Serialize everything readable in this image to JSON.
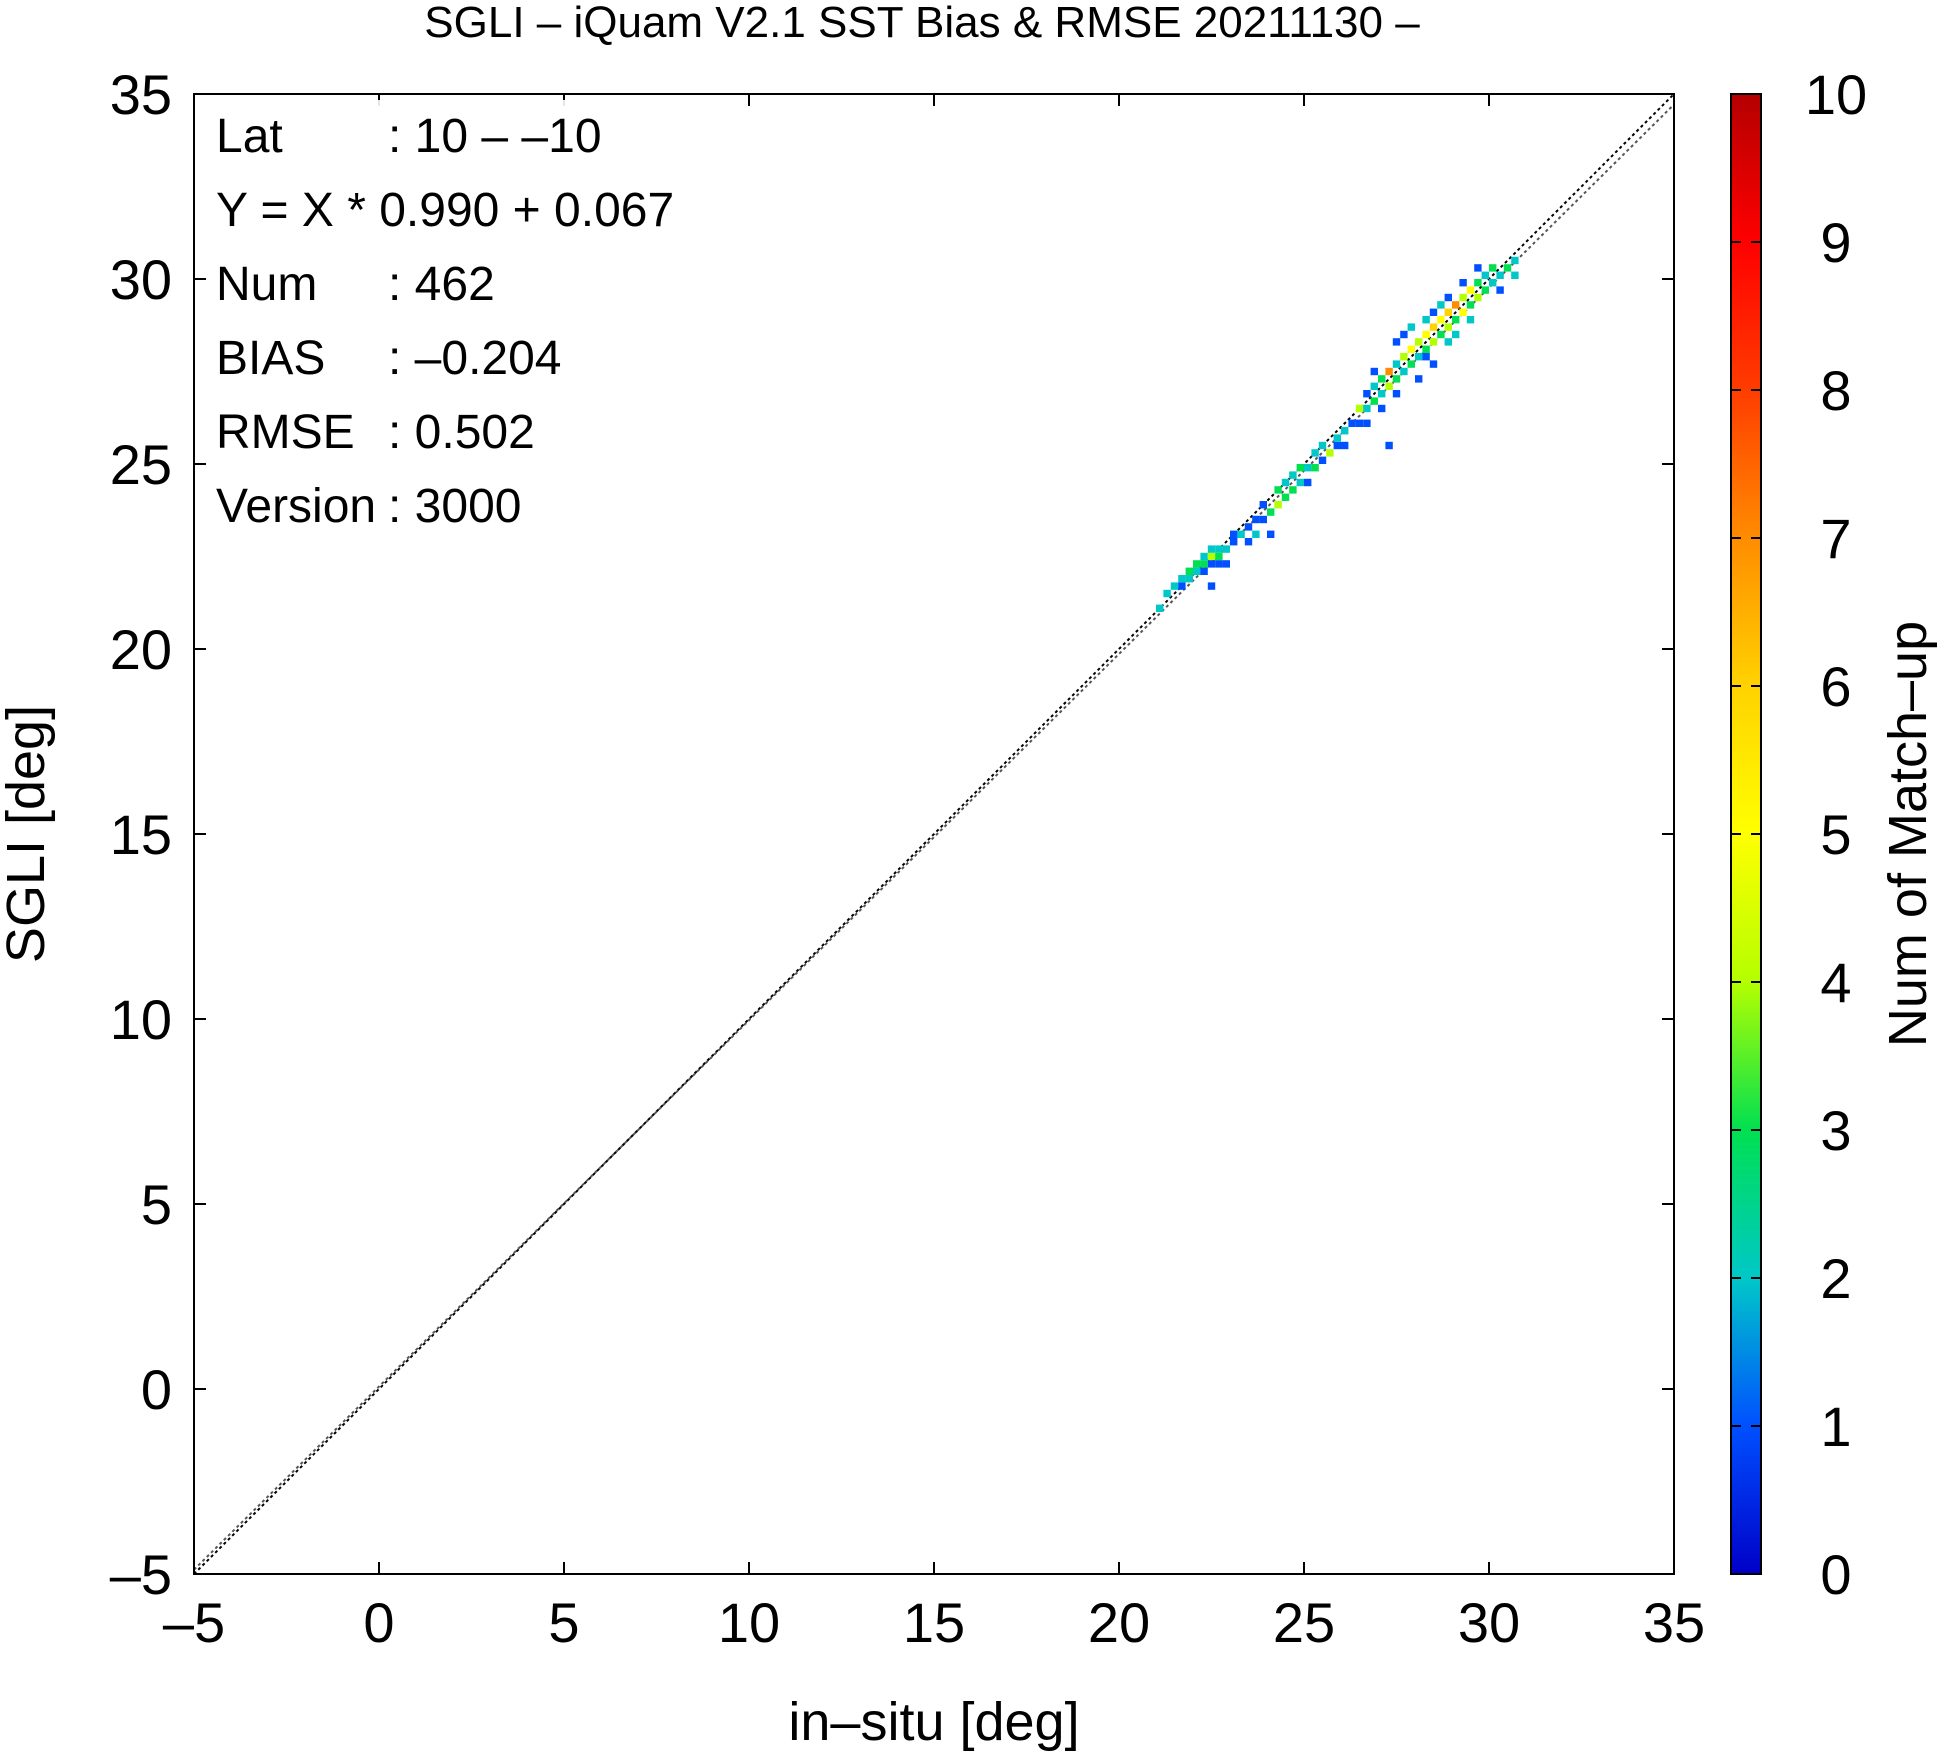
{
  "chart_data": {
    "type": "heatmap",
    "title": "SGLI – iQuam V2.1 SST Bias & RMSE 20211130 –",
    "xlabel": "in–situ [deg]",
    "ylabel": "SGLI [deg]",
    "xlim": [
      -5,
      35
    ],
    "ylim": [
      -5,
      35
    ],
    "x_ticks": [
      "–5",
      "0",
      "5",
      "10",
      "15",
      "20",
      "25",
      "30",
      "35"
    ],
    "y_ticks": [
      "–5",
      "0",
      "5",
      "10",
      "15",
      "20",
      "25",
      "30",
      "35"
    ],
    "colorbar": {
      "label": "Num of Match–up",
      "range": [
        0,
        10
      ],
      "ticks": [
        "0",
        "1",
        "2",
        "3",
        "4",
        "5",
        "6",
        "7",
        "8",
        "9",
        "10"
      ],
      "colors": [
        "#0000c8",
        "#0050ff",
        "#00c8c8",
        "#00e050",
        "#b4ff00",
        "#ffff00",
        "#ffd200",
        "#ff8c00",
        "#ff3c00",
        "#ff0000",
        "#b40000"
      ]
    },
    "reference_lines": [
      {
        "kind": "one_to_one",
        "slope": 1.0,
        "intercept": 0.0,
        "style": "dotted"
      },
      {
        "kind": "regression",
        "slope": 0.99,
        "intercept": 0.067,
        "style": "dotted"
      }
    ],
    "stats": [
      {
        "label": "Lat",
        "value": ": 10 – –10"
      },
      {
        "label": "Y = X * 0.990 + 0.067",
        "value": ""
      },
      {
        "label": "Num",
        "value": ": 462"
      },
      {
        "label": "BIAS",
        "value": ": –0.204"
      },
      {
        "label": "RMSE",
        "value": ": 0.502"
      },
      {
        "label": "Version",
        "value": ": 3000"
      }
    ],
    "bin_size": 0.2,
    "cells": [
      [
        21.0,
        21.0,
        2
      ],
      [
        21.2,
        21.4,
        2
      ],
      [
        21.4,
        21.6,
        2
      ],
      [
        21.6,
        21.6,
        1
      ],
      [
        21.6,
        21.8,
        2
      ],
      [
        21.8,
        21.8,
        2
      ],
      [
        21.8,
        22.0,
        3
      ],
      [
        22.0,
        22.0,
        2
      ],
      [
        22.0,
        22.2,
        3
      ],
      [
        22.2,
        22.0,
        1
      ],
      [
        22.2,
        22.2,
        3
      ],
      [
        22.2,
        22.4,
        2
      ],
      [
        22.4,
        21.6,
        1
      ],
      [
        22.4,
        22.4,
        4
      ],
      [
        22.4,
        22.6,
        2
      ],
      [
        22.4,
        22.2,
        1
      ],
      [
        22.6,
        22.4,
        3
      ],
      [
        22.6,
        22.6,
        2
      ],
      [
        22.6,
        22.2,
        1
      ],
      [
        22.8,
        22.6,
        2
      ],
      [
        22.8,
        22.2,
        1
      ],
      [
        23.0,
        22.8,
        1
      ],
      [
        23.0,
        23.0,
        1
      ],
      [
        23.2,
        23.0,
        2
      ],
      [
        23.4,
        23.2,
        1
      ],
      [
        23.4,
        22.8,
        1
      ],
      [
        23.6,
        23.4,
        1
      ],
      [
        23.6,
        23.0,
        2
      ],
      [
        23.8,
        23.4,
        1
      ],
      [
        23.8,
        23.8,
        1
      ],
      [
        24.0,
        23.6,
        3
      ],
      [
        24.0,
        23.0,
        1
      ],
      [
        24.2,
        23.8,
        4
      ],
      [
        24.2,
        24.2,
        3
      ],
      [
        24.4,
        24.0,
        3
      ],
      [
        24.4,
        24.4,
        2
      ],
      [
        24.6,
        24.2,
        3
      ],
      [
        24.6,
        24.6,
        2
      ],
      [
        24.8,
        24.4,
        2
      ],
      [
        24.8,
        24.8,
        3
      ],
      [
        25.0,
        24.8,
        2
      ],
      [
        25.0,
        24.4,
        1
      ],
      [
        25.2,
        24.8,
        3
      ],
      [
        25.2,
        25.2,
        2
      ],
      [
        25.4,
        25.0,
        1
      ],
      [
        25.4,
        25.4,
        2
      ],
      [
        25.6,
        25.2,
        4
      ],
      [
        25.8,
        25.4,
        1
      ],
      [
        25.8,
        25.6,
        2
      ],
      [
        26.0,
        25.8,
        2
      ],
      [
        26.0,
        25.4,
        1
      ],
      [
        26.2,
        26.0,
        1
      ],
      [
        26.4,
        26.0,
        1
      ],
      [
        26.4,
        26.4,
        4
      ],
      [
        26.6,
        26.4,
        2
      ],
      [
        26.6,
        26.8,
        1
      ],
      [
        26.6,
        26.0,
        1
      ],
      [
        26.8,
        26.6,
        3
      ],
      [
        26.8,
        27.0,
        2
      ],
      [
        26.8,
        27.4,
        1
      ],
      [
        27.0,
        26.8,
        2
      ],
      [
        27.0,
        27.2,
        3
      ],
      [
        27.0,
        26.4,
        1
      ],
      [
        27.2,
        27.0,
        4
      ],
      [
        27.2,
        27.4,
        7
      ],
      [
        27.2,
        25.4,
        1
      ],
      [
        27.4,
        27.2,
        3
      ],
      [
        27.4,
        27.6,
        2
      ],
      [
        27.4,
        26.8,
        1
      ],
      [
        27.4,
        28.2,
        1
      ],
      [
        27.6,
        27.4,
        2
      ],
      [
        27.6,
        27.8,
        4
      ],
      [
        27.6,
        28.4,
        1
      ],
      [
        27.8,
        27.6,
        3
      ],
      [
        27.8,
        28.0,
        5
      ],
      [
        27.8,
        28.6,
        2
      ],
      [
        28.0,
        27.8,
        2
      ],
      [
        28.0,
        28.2,
        4
      ],
      [
        28.0,
        27.2,
        1
      ],
      [
        28.2,
        28.0,
        3
      ],
      [
        28.2,
        28.4,
        5
      ],
      [
        28.2,
        28.8,
        2
      ],
      [
        28.2,
        27.8,
        1
      ],
      [
        28.4,
        28.2,
        4
      ],
      [
        28.4,
        28.6,
        6
      ],
      [
        28.4,
        29.0,
        1
      ],
      [
        28.4,
        27.6,
        1
      ],
      [
        28.6,
        28.4,
        3
      ],
      [
        28.6,
        28.8,
        5
      ],
      [
        28.6,
        29.2,
        2
      ],
      [
        28.8,
        28.6,
        4
      ],
      [
        28.8,
        29.0,
        6
      ],
      [
        28.8,
        29.4,
        1
      ],
      [
        28.8,
        28.2,
        2
      ],
      [
        29.0,
        28.8,
        3
      ],
      [
        29.0,
        29.2,
        7
      ],
      [
        29.0,
        28.4,
        2
      ],
      [
        29.2,
        29.0,
        5
      ],
      [
        29.2,
        29.4,
        4
      ],
      [
        29.2,
        29.8,
        1
      ],
      [
        29.4,
        29.2,
        3
      ],
      [
        29.4,
        29.6,
        5
      ],
      [
        29.4,
        28.8,
        2
      ],
      [
        29.6,
        29.4,
        4
      ],
      [
        29.6,
        29.8,
        3
      ],
      [
        29.6,
        30.2,
        1
      ],
      [
        29.8,
        29.6,
        3
      ],
      [
        29.8,
        30.0,
        2
      ],
      [
        30.0,
        29.8,
        2
      ],
      [
        30.0,
        30.2,
        3
      ],
      [
        30.2,
        30.0,
        2
      ],
      [
        30.2,
        29.6,
        1
      ],
      [
        30.4,
        30.2,
        3
      ],
      [
        30.6,
        30.0,
        2
      ],
      [
        30.6,
        30.4,
        2
      ]
    ]
  }
}
